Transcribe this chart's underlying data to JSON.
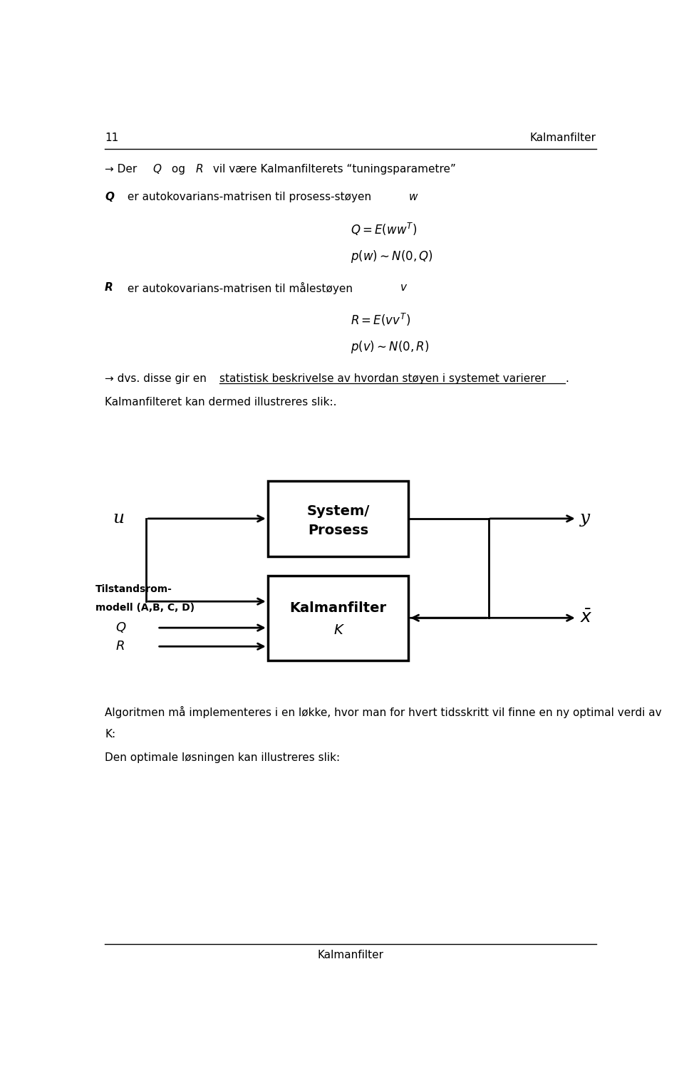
{
  "page_number": "11",
  "header_title": "Kalmanfilter",
  "footer_title": "Kalmanfilter",
  "bg_color": "#ffffff",
  "text_color": "#000000"
}
